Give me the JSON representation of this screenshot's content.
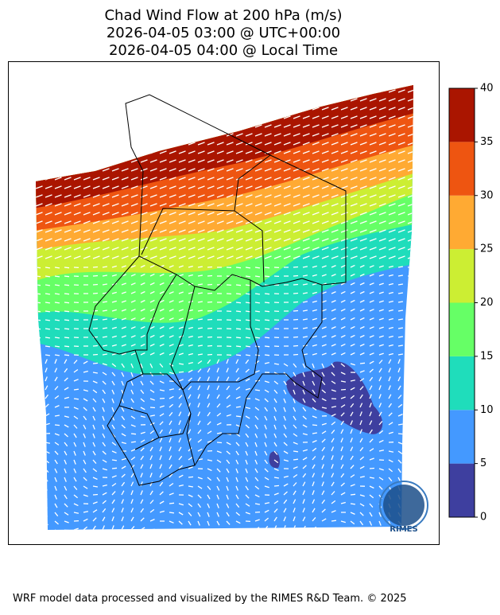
{
  "title": [
    "Chad Wind Flow at 200 hPa (m/s)",
    "2026-04-05 03:00 @ UTC+00:00",
    "2026-04-05 04:00 @ Local Time"
  ],
  "colorbar": {
    "lim": [
      0,
      40
    ],
    "ticks": [
      0,
      5,
      10,
      15,
      20,
      25,
      30,
      35,
      40
    ],
    "colors": [
      "#3e3f9f",
      "#4499ff",
      "#1fddbb",
      "#66ff66",
      "#ccee33",
      "#ffaa33",
      "#ee5511",
      "#aa1500"
    ]
  },
  "logo": "RIMES",
  "footer": "WRF model data processed and visualized by the RIMES R&D Team. © 2025"
}
